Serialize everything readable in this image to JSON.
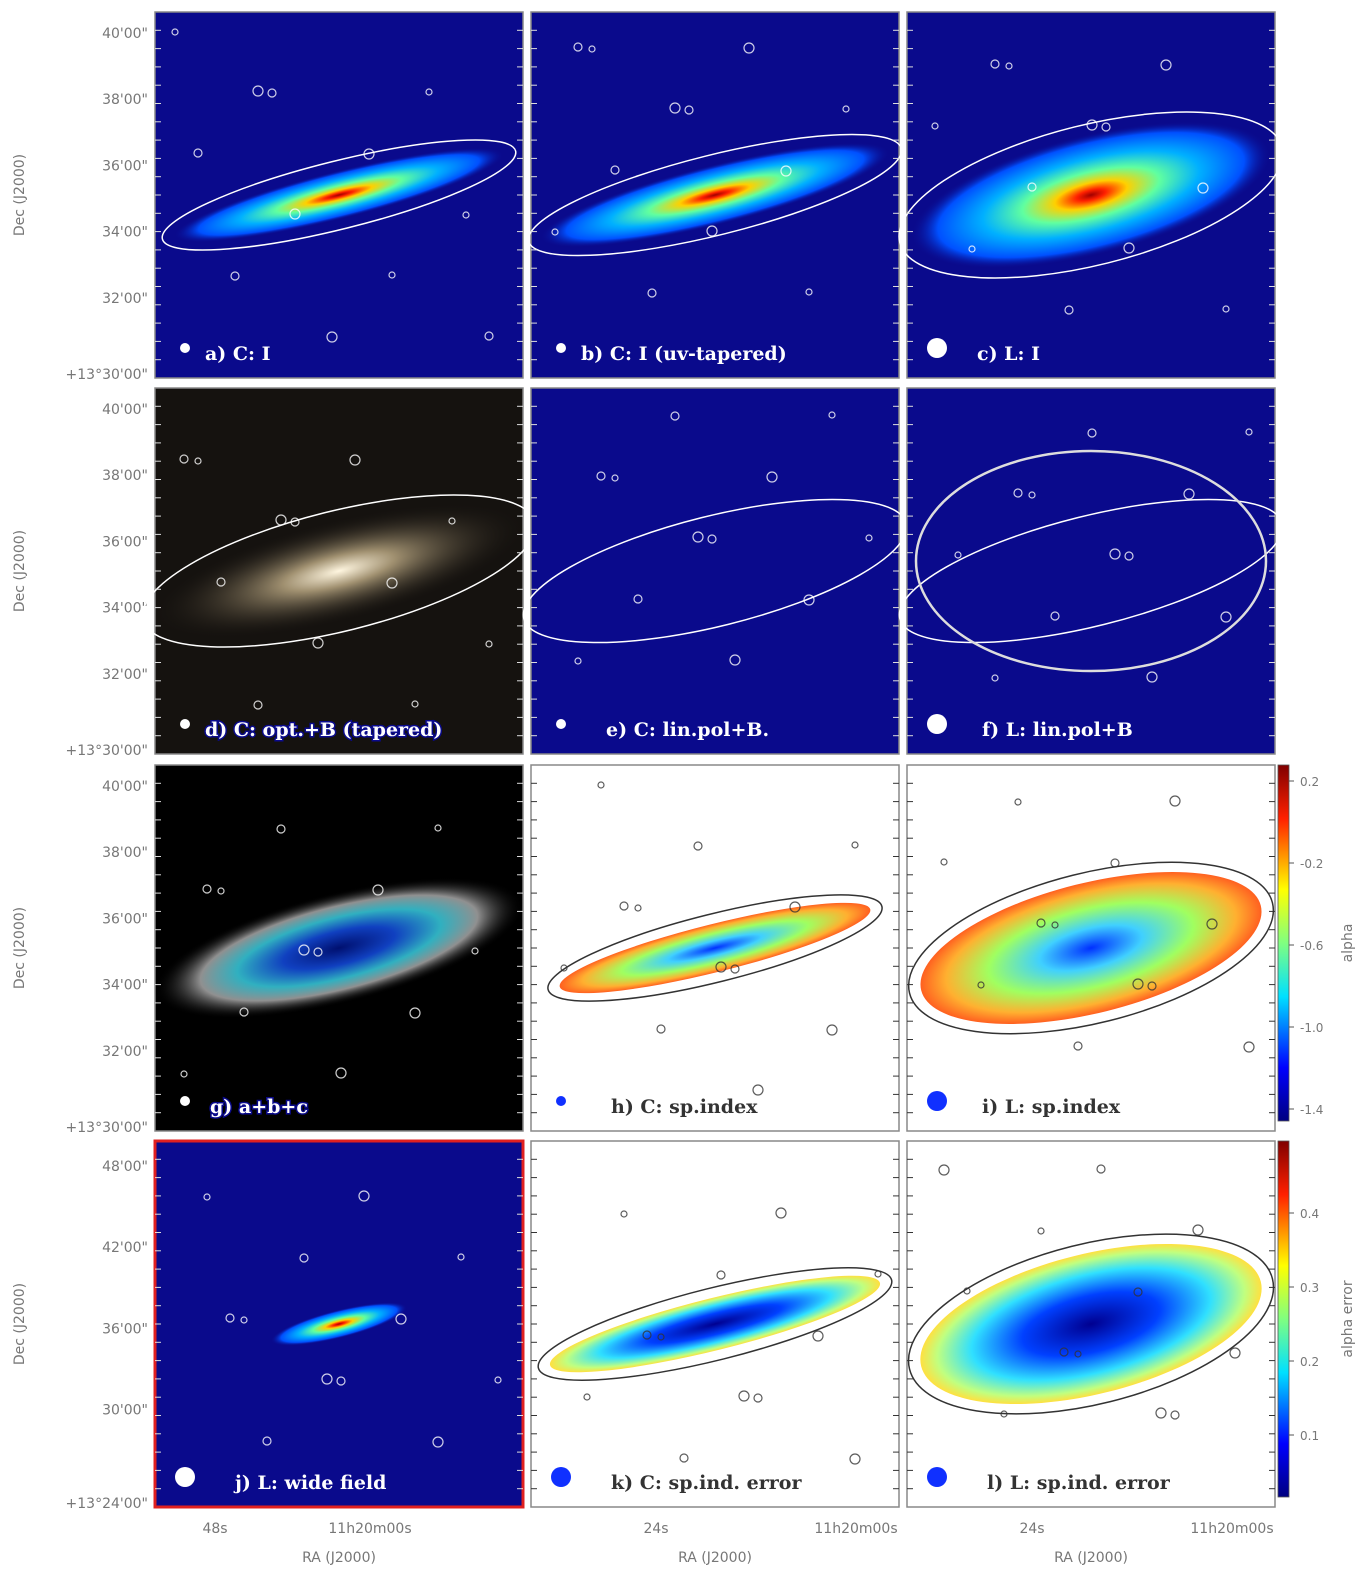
{
  "rows": [
    {
      "ylabel": "Dec (J2000)",
      "yticks": [
        "40'00\"",
        "38'00\"",
        "36'00\"",
        "34'00\"",
        "32'00\"",
        "+13°30'00\""
      ],
      "panels": [
        "a) C: I",
        "b) C: I (uv-tapered)",
        "c) L: I"
      ]
    },
    {
      "ylabel": "Dec (J2000)",
      "yticks": [
        "40'00\"",
        "38'00\"",
        "36'00\"",
        "34'00\"",
        "32'00\"",
        "+13°30'00\""
      ],
      "panels": [
        "d) C: opt.+B (tapered)",
        "e) C: lin.pol+B.",
        "f) L: lin.pol+B"
      ]
    },
    {
      "ylabel": "Dec (J2000)",
      "yticks": [
        "40'00\"",
        "38'00\"",
        "36'00\"",
        "34'00\"",
        "32'00\"",
        "+13°30'00\""
      ],
      "panels": [
        "g)  a+b+c",
        "h) C: sp.index",
        "i) L: sp.index"
      ]
    },
    {
      "ylabel": "Dec (J2000)",
      "yticks": [
        "48'00\"",
        "42'00\"",
        "36'00\"",
        "30'00\"",
        "+13°24'00\""
      ],
      "panels": [
        "j) L: wide field",
        "k) C: sp.ind. error",
        "l) L: sp.ind. error"
      ]
    }
  ],
  "xaxes": [
    {
      "ticks": [
        "48s",
        "11h20m00s"
      ],
      "label": "RA (J2000)"
    },
    {
      "ticks": [
        "24s",
        "11h20m00s"
      ],
      "label": "RA (J2000)"
    },
    {
      "ticks": [
        "24s",
        "11h20m00s"
      ],
      "label": "RA (J2000)"
    }
  ],
  "colorbars": [
    {
      "ticks": [
        "0.2",
        "-0.2",
        "-0.6",
        "-1.0",
        "-1.4"
      ],
      "label": "alpha"
    },
    {
      "ticks": [
        "0.4",
        "0.3",
        "0.2",
        "0.1"
      ],
      "label": "alpha error"
    }
  ]
}
